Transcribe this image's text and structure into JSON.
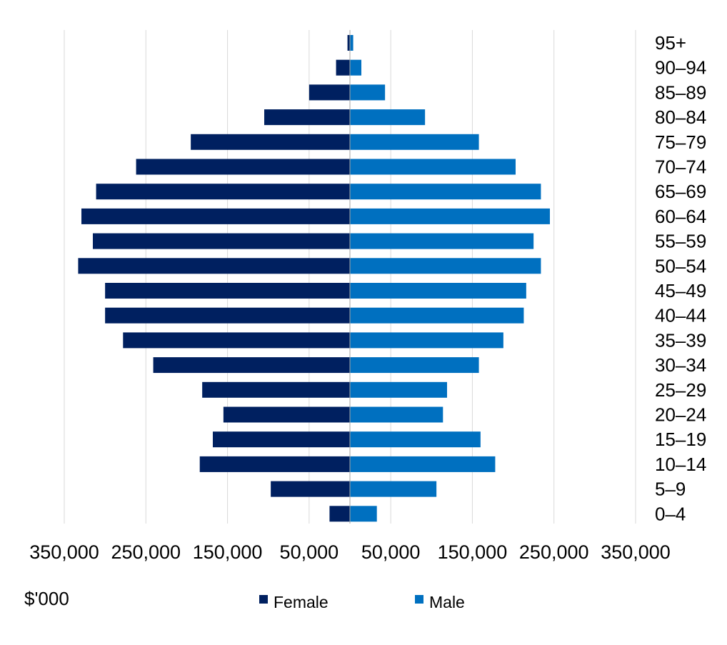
{
  "chart_data": {
    "type": "bar",
    "orientation": "horizontal",
    "layout": "population-pyramid",
    "title": "",
    "unit_label": "$'000",
    "categories": [
      "95+",
      "90–94",
      "85–89",
      "80–84",
      "75–79",
      "70–74",
      "65–69",
      "60–64",
      "55–59",
      "50–54",
      "45–49",
      "40–44",
      "35–39",
      "30–34",
      "25–29",
      "20–24",
      "15–19",
      "10–14",
      "5–9",
      "0–4"
    ],
    "series": [
      {
        "name": "Female",
        "side": "left",
        "color": "#002060",
        "values": [
          3000,
          17000,
          50000,
          105000,
          195000,
          262000,
          311000,
          329000,
          315000,
          333000,
          300000,
          300000,
          278000,
          241000,
          181000,
          155000,
          168000,
          184000,
          97000,
          25000
        ]
      },
      {
        "name": "Male",
        "side": "right",
        "color": "#0070c0",
        "values": [
          4000,
          14000,
          43000,
          92000,
          158000,
          203000,
          234000,
          245000,
          225000,
          234000,
          216000,
          213000,
          188000,
          158000,
          119000,
          114000,
          160000,
          178000,
          106000,
          33000
        ]
      }
    ],
    "x_range": [
      -350000,
      350000
    ],
    "x_tick_values": [
      -350000,
      -250000,
      -150000,
      -50000,
      50000,
      150000,
      250000,
      350000
    ],
    "x_tick_labels": [
      "350,000",
      "250,000",
      "150,000",
      "50,000",
      "50,000",
      "150,000",
      "250,000",
      "350,000"
    ],
    "category_axis_position": "right",
    "grid": true,
    "legend_position": "bottom"
  }
}
